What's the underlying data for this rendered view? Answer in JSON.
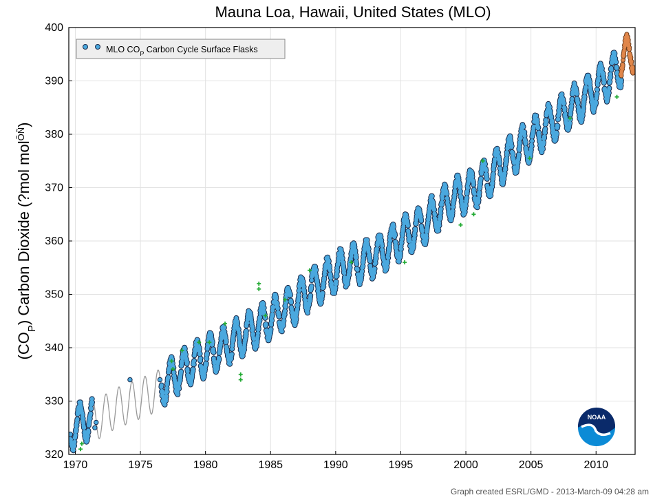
{
  "chart_data": {
    "type": "line",
    "title": "Mauna Loa, Hawaii, United States (MLO)",
    "ylabel_parts": {
      "pre": "(CO",
      "sub": "P",
      "mid": ") Carbon Dioxide (?mol mol",
      "sup": "ÕÑ",
      "post": ")"
    },
    "xlim": [
      1969.5,
      2013.0
    ],
    "ylim": [
      320,
      400
    ],
    "x_ticks": [
      1970,
      1975,
      1980,
      1985,
      1990,
      1995,
      2000,
      2005,
      2010
    ],
    "y_ticks": [
      320,
      330,
      340,
      350,
      360,
      370,
      380,
      390,
      400
    ],
    "grid": true,
    "legend": {
      "placement": "top-left",
      "entries": [
        {
          "pre": "MLO CO",
          "sub": "P",
          "post": " Carbon Cycle Surface Flasks",
          "marker_color": "#4aa8de"
        }
      ]
    },
    "series": [
      {
        "name": "MLO COP Carbon Cycle Surface Flasks",
        "kind": "seasonal_curve",
        "color": "#4aa8de",
        "x": [
          1969.6,
          1970.0,
          1971.0,
          1972.0,
          1973.0,
          1974.0,
          1975.0,
          1976.0,
          1977.0,
          1978.0,
          1979.0,
          1980.0,
          1981.0,
          1982.0,
          1983.0,
          1984.0,
          1985.0,
          1986.0,
          1987.0,
          1988.0,
          1989.0,
          1990.0,
          1991.0,
          1992.0,
          1993.0,
          1994.0,
          1995.0,
          1996.0,
          1997.0,
          1998.0,
          1999.0,
          2000.0,
          2001.0,
          2002.0,
          2003.0,
          2004.0,
          2005.0,
          2006.0,
          2007.0,
          2008.0,
          2009.0,
          2010.0,
          2011.0,
          2012.0,
          2013.0
        ],
        "y": [
          323.5,
          325.5,
          326.5,
          327.5,
          329.5,
          330.5,
          331.0,
          332.0,
          333.5,
          335.5,
          337.0,
          338.5,
          339.5,
          341.0,
          342.5,
          344.0,
          345.5,
          347.0,
          348.5,
          351.0,
          352.5,
          354.0,
          355.5,
          356.0,
          357.0,
          358.5,
          360.5,
          362.0,
          363.5,
          366.0,
          368.0,
          369.0,
          370.5,
          372.5,
          375.0,
          377.0,
          379.0,
          381.0,
          383.0,
          385.0,
          386.5,
          388.5,
          390.5,
          393.0,
          395.0
        ],
        "seasonal_amplitude": 3.5
      },
      {
        "name": "smoothed trend",
        "kind": "gray_line",
        "color": "#999999",
        "x": [
          1969.6,
          1971.0,
          1972.0,
          1973.0,
          1974.0,
          1975.0,
          1976.0,
          1977.0,
          1980.0,
          1985.0,
          1990.0,
          1995.0,
          2000.0,
          2005.0,
          2010.0,
          2012.5
        ],
        "y": [
          323.5,
          325.5,
          327.0,
          328.5,
          329.5,
          330.5,
          331.5,
          333.0,
          338.0,
          345.5,
          354.0,
          360.5,
          369.0,
          379.0,
          388.5,
          393.0
        ]
      }
    ],
    "outliers": {
      "color": "#22aa33",
      "points": [
        [
          1970.4,
          321.0
        ],
        [
          1970.5,
          322.0
        ],
        [
          1977.4,
          337.5
        ],
        [
          1977.5,
          336.0
        ],
        [
          1978.2,
          339.5
        ],
        [
          1979.5,
          341.0
        ],
        [
          1980.3,
          341.0
        ],
        [
          1981.5,
          344.5
        ],
        [
          1982.7,
          334.0
        ],
        [
          1982.7,
          335.0
        ],
        [
          1984.1,
          352.0
        ],
        [
          1984.1,
          351.0
        ],
        [
          1984.6,
          346.0
        ],
        [
          1986.1,
          349.0
        ],
        [
          1988.0,
          354.5
        ],
        [
          1991.2,
          356.0
        ],
        [
          1995.3,
          356.0
        ],
        [
          1999.6,
          363.0
        ],
        [
          2000.6,
          365.0
        ],
        [
          2001.3,
          375.0
        ],
        [
          2004.9,
          375.5
        ],
        [
          2008.0,
          383.0
        ],
        [
          2011.6,
          387.0
        ]
      ]
    },
    "recent_series": {
      "color": "#e0864a",
      "x_start": 2011.9,
      "x_end": 2012.9,
      "y_low": 390.5,
      "y_high": 398.0
    }
  },
  "logo": {
    "text": "NOAA"
  },
  "credit": "Graph created ESRL/GMD - 2013-March-09 04:28 am"
}
